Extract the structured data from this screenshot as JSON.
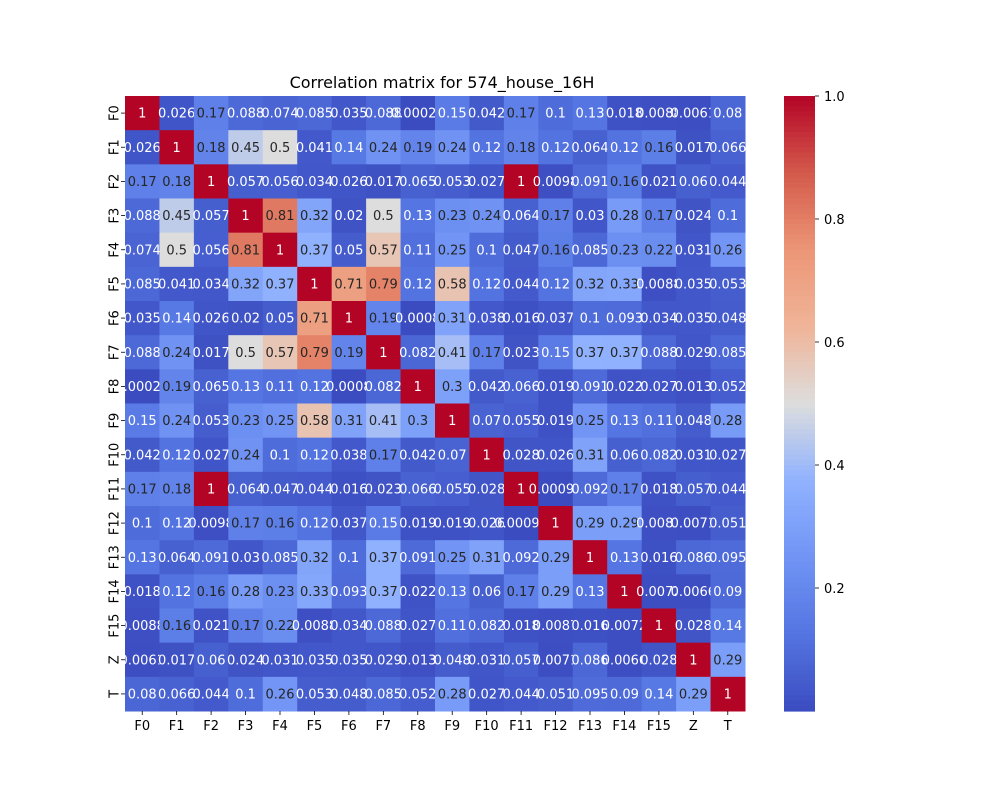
{
  "chart_data": {
    "type": "heatmap",
    "title": "Correlation matrix for 574_house_16H",
    "labels": [
      "F0",
      "F1",
      "F2",
      "F3",
      "F4",
      "F5",
      "F6",
      "F7",
      "F8",
      "F9",
      "F10",
      "F11",
      "F12",
      "F13",
      "F14",
      "F15",
      "Z",
      "T"
    ],
    "colormap": "coolwarm",
    "colorbar": {
      "min": 0.0,
      "max": 1.0,
      "ticks": [
        "0.2",
        "0.4",
        "0.6",
        "0.8",
        "1.0"
      ]
    },
    "values": [
      [
        1,
        0.026,
        0.17,
        0.088,
        0.074,
        0.085,
        0.035,
        0.088,
        0.00024,
        0.15,
        0.042,
        0.17,
        0.1,
        0.13,
        0.018,
        0.0088,
        0.0061,
        0.08
      ],
      [
        0.026,
        1,
        0.18,
        0.45,
        0.5,
        0.041,
        0.14,
        0.24,
        0.19,
        0.24,
        0.12,
        0.18,
        0.12,
        0.064,
        0.12,
        0.16,
        0.017,
        0.066
      ],
      [
        0.17,
        0.18,
        1,
        0.057,
        0.056,
        0.034,
        0.026,
        0.017,
        0.065,
        0.053,
        0.027,
        1,
        0.0098,
        0.091,
        0.16,
        0.021,
        0.06,
        0.044
      ],
      [
        0.088,
        0.45,
        0.057,
        1,
        0.81,
        0.32,
        0.02,
        0.5,
        0.13,
        0.23,
        0.24,
        0.064,
        0.17,
        0.03,
        0.28,
        0.17,
        0.024,
        0.1
      ],
      [
        0.074,
        0.5,
        0.056,
        0.81,
        1,
        0.37,
        0.05,
        0.57,
        0.11,
        0.25,
        0.1,
        0.047,
        0.16,
        0.085,
        0.23,
        0.22,
        0.031,
        0.26
      ],
      [
        0.085,
        0.041,
        0.034,
        0.32,
        0.37,
        1,
        0.71,
        0.79,
        0.12,
        0.58,
        0.12,
        0.044,
        0.12,
        0.32,
        0.33,
        0.0088,
        0.035,
        0.053
      ],
      [
        0.035,
        0.14,
        0.026,
        0.02,
        0.05,
        0.71,
        1,
        0.19,
        0.0008,
        0.31,
        0.038,
        0.016,
        0.037,
        0.1,
        0.093,
        0.034,
        0.035,
        0.048
      ],
      [
        0.088,
        0.24,
        0.017,
        0.5,
        0.57,
        0.79,
        0.19,
        1,
        0.082,
        0.41,
        0.17,
        0.023,
        0.15,
        0.37,
        0.37,
        0.088,
        0.029,
        0.085
      ],
      [
        0.00024,
        0.19,
        0.065,
        0.13,
        0.11,
        0.12,
        0.0008,
        0.082,
        1,
        0.3,
        0.042,
        0.066,
        0.019,
        0.091,
        0.022,
        0.027,
        0.013,
        0.052
      ],
      [
        0.15,
        0.24,
        0.053,
        0.23,
        0.25,
        0.58,
        0.31,
        0.41,
        0.3,
        1,
        0.07,
        0.055,
        0.019,
        0.25,
        0.13,
        0.11,
        0.048,
        0.28
      ],
      [
        0.042,
        0.12,
        0.027,
        0.24,
        0.1,
        0.12,
        0.038,
        0.17,
        0.042,
        0.07,
        1,
        0.028,
        0.026,
        0.31,
        0.06,
        0.082,
        0.031,
        0.027
      ],
      [
        0.17,
        0.18,
        1,
        0.064,
        0.047,
        0.044,
        0.016,
        0.023,
        0.066,
        0.055,
        0.028,
        1,
        0.00096,
        0.092,
        0.17,
        0.018,
        0.057,
        0.044
      ],
      [
        0.1,
        0.12,
        0.0098,
        0.17,
        0.16,
        0.12,
        0.037,
        0.15,
        0.019,
        0.019,
        0.026,
        0.00096,
        1,
        0.29,
        0.29,
        0.0087,
        0.0071,
        0.051
      ],
      [
        0.13,
        0.064,
        0.091,
        0.03,
        0.085,
        0.32,
        0.1,
        0.37,
        0.091,
        0.25,
        0.31,
        0.092,
        0.29,
        1,
        0.13,
        0.016,
        0.086,
        0.095
      ],
      [
        0.018,
        0.12,
        0.16,
        0.28,
        0.23,
        0.33,
        0.093,
        0.37,
        0.022,
        0.13,
        0.06,
        0.17,
        0.29,
        0.13,
        1,
        0.0072,
        0.0066,
        0.09
      ],
      [
        0.0088,
        0.16,
        0.021,
        0.17,
        0.22,
        0.0088,
        0.034,
        0.088,
        0.027,
        0.11,
        0.082,
        0.018,
        0.0087,
        0.016,
        0.0072,
        1,
        0.028,
        0.14
      ],
      [
        0.0061,
        0.017,
        0.06,
        0.024,
        0.031,
        0.035,
        0.035,
        0.029,
        0.013,
        0.048,
        0.031,
        0.057,
        0.0071,
        0.086,
        0.0066,
        0.028,
        1,
        0.29
      ],
      [
        0.08,
        0.066,
        0.044,
        0.1,
        0.26,
        0.053,
        0.048,
        0.085,
        0.052,
        0.28,
        0.027,
        0.044,
        0.051,
        0.095,
        0.09,
        0.14,
        0.29,
        1
      ]
    ],
    "cell_labels": [
      [
        "1",
        "0.026",
        "0.17",
        "0.088",
        "0.074",
        "0.085",
        "0.035",
        "0.088",
        "0.00024",
        "0.15",
        "0.042",
        "0.17",
        "0.1",
        "0.13",
        "0.018",
        "0.0088",
        "0.0061",
        "0.08"
      ],
      [
        "0.026",
        "1",
        "0.18",
        "0.45",
        "0.5",
        "0.041",
        "0.14",
        "0.24",
        "0.19",
        "0.24",
        "0.12",
        "0.18",
        "0.12",
        "0.064",
        "0.12",
        "0.16",
        "0.017",
        "0.066"
      ],
      [
        "0.17",
        "0.18",
        "1",
        "0.057",
        "0.056",
        "0.034",
        "0.026",
        "0.017",
        "0.065",
        "0.053",
        "0.027",
        "1",
        "0.0098",
        "0.091",
        "0.16",
        "0.021",
        "0.06",
        "0.044"
      ],
      [
        "0.088",
        "0.45",
        "0.057",
        "1",
        "0.81",
        "0.32",
        "0.02",
        "0.5",
        "0.13",
        "0.23",
        "0.24",
        "0.064",
        "0.17",
        "0.03",
        "0.28",
        "0.17",
        "0.024",
        "0.1"
      ],
      [
        "0.074",
        "0.5",
        "0.056",
        "0.81",
        "1",
        "0.37",
        "0.05",
        "0.57",
        "0.11",
        "0.25",
        "0.1",
        "0.047",
        "0.16",
        "0.085",
        "0.23",
        "0.22",
        "0.031",
        "0.26"
      ],
      [
        "0.085",
        "0.041",
        "0.034",
        "0.32",
        "0.37",
        "1",
        "0.71",
        "0.79",
        "0.12",
        "0.58",
        "0.12",
        "0.044",
        "0.12",
        "0.32",
        "0.33",
        "0.0088",
        "0.035",
        "0.053"
      ],
      [
        "0.035",
        "0.14",
        "0.026",
        "0.02",
        "0.05",
        "0.71",
        "1",
        "0.19",
        "0.0008",
        "0.31",
        "0.038",
        "0.016",
        "0.037",
        "0.1",
        "0.093",
        "0.034",
        "0.035",
        "0.048"
      ],
      [
        "0.088",
        "0.24",
        "0.017",
        "0.5",
        "0.57",
        "0.79",
        "0.19",
        "1",
        "0.082",
        "0.41",
        "0.17",
        "0.023",
        "0.15",
        "0.37",
        "0.37",
        "0.088",
        "0.029",
        "0.085"
      ],
      [
        "0.00024",
        "0.19",
        "0.065",
        "0.13",
        "0.11",
        "0.12",
        "0.0008",
        "0.082",
        "1",
        "0.3",
        "0.042",
        "0.066",
        "0.019",
        "0.091",
        "0.022",
        "0.027",
        "0.013",
        "0.052"
      ],
      [
        "0.15",
        "0.24",
        "0.053",
        "0.23",
        "0.25",
        "0.58",
        "0.31",
        "0.41",
        "0.3",
        "1",
        "0.07",
        "0.055",
        "0.019",
        "0.25",
        "0.13",
        "0.11",
        "0.048",
        "0.28"
      ],
      [
        "0.042",
        "0.12",
        "0.027",
        "0.24",
        "0.1",
        "0.12",
        "0.038",
        "0.17",
        "0.042",
        "0.07",
        "1",
        "0.028",
        "0.026",
        "0.31",
        "0.06",
        "0.082",
        "0.031",
        "0.027"
      ],
      [
        "0.17",
        "0.18",
        "1",
        "0.064",
        "0.047",
        "0.044",
        "0.016",
        "0.023",
        "0.066",
        "0.055",
        "0.028",
        "1",
        "0.00096",
        "0.092",
        "0.17",
        "0.018",
        "0.057",
        "0.044"
      ],
      [
        "0.1",
        "0.12",
        "0.0098",
        "0.17",
        "0.16",
        "0.12",
        "0.037",
        "0.15",
        "0.019",
        "0.019",
        "0.026",
        "0.00096",
        "1",
        "0.29",
        "0.29",
        "0.0087",
        "0.0071",
        "0.051"
      ],
      [
        "0.13",
        "0.064",
        "0.091",
        "0.03",
        "0.085",
        "0.32",
        "0.1",
        "0.37",
        "0.091",
        "0.25",
        "0.31",
        "0.092",
        "0.29",
        "1",
        "0.13",
        "0.016",
        "0.086",
        "0.095"
      ],
      [
        "0.018",
        "0.12",
        "0.16",
        "0.28",
        "0.23",
        "0.33",
        "0.093",
        "0.37",
        "0.022",
        "0.13",
        "0.06",
        "0.17",
        "0.29",
        "0.13",
        "1",
        "0.0072",
        "0.0066",
        "0.09"
      ],
      [
        "0.0088",
        "0.16",
        "0.021",
        "0.17",
        "0.22",
        "0.0088",
        "0.034",
        "0.088",
        "0.027",
        "0.11",
        "0.082",
        "0.018",
        "0.0087",
        "0.016",
        "0.0072",
        "1",
        "0.028",
        "0.14"
      ],
      [
        "0.0061",
        "0.017",
        "0.06",
        "0.024",
        "0.031",
        "0.035",
        "0.035",
        "0.029",
        "0.013",
        "0.048",
        "0.031",
        "0.057",
        "0.0071",
        "0.086",
        "0.0066",
        "0.028",
        "1",
        "0.29"
      ],
      [
        "0.08",
        "0.066",
        "0.044",
        "0.1",
        "0.26",
        "0.053",
        "0.048",
        "0.085",
        "0.052",
        "0.28",
        "0.027",
        "0.044",
        "0.051",
        "0.095",
        "0.09",
        "0.14",
        "0.29",
        "1"
      ]
    ]
  }
}
